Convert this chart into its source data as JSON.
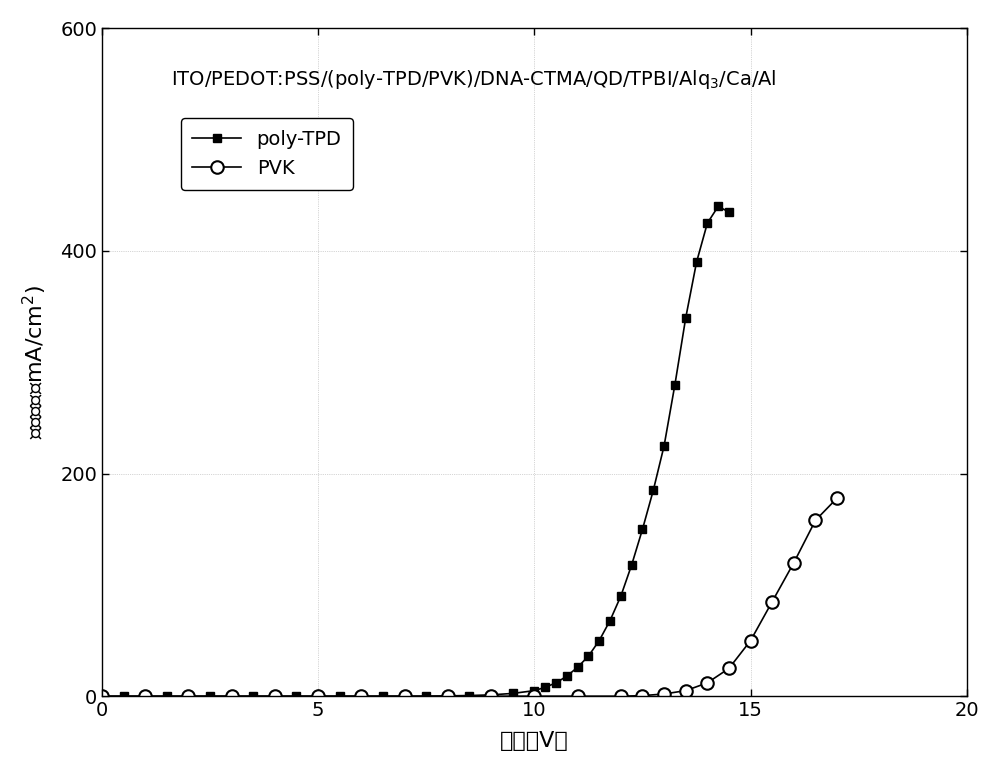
{
  "title": "ITO/PEDOT:PSS/(poly-TPD/PVK)/DNA-CTMA/QD/TPBI/Alq$_3$/Ca/Al",
  "xlabel_cn": "电压（V）",
  "ylabel_cn": "电流密度（mA/cm",
  "xlim": [
    0,
    20
  ],
  "ylim": [
    0,
    600
  ],
  "xticks": [
    0,
    5,
    10,
    15,
    20
  ],
  "yticks": [
    0,
    200,
    400,
    600
  ],
  "legend1_label": "poly-TPD",
  "legend2_label": "PVK",
  "poly_tpd_x": [
    0.0,
    0.5,
    1.0,
    1.5,
    2.0,
    2.5,
    3.0,
    3.5,
    4.0,
    4.5,
    5.0,
    5.5,
    6.0,
    6.5,
    7.0,
    7.5,
    8.0,
    8.5,
    9.0,
    9.5,
    10.0,
    10.25,
    10.5,
    10.75,
    11.0,
    11.25,
    11.5,
    11.75,
    12.0,
    12.25,
    12.5,
    12.75,
    13.0,
    13.25,
    13.5,
    13.75,
    14.0,
    14.25,
    14.5
  ],
  "poly_tpd_y": [
    0,
    0,
    0,
    0,
    0,
    0,
    0,
    0,
    0,
    0,
    0,
    0,
    0,
    0,
    0,
    0,
    0.3,
    0.6,
    1.2,
    2.5,
    5.0,
    8.0,
    12.0,
    18.0,
    26.0,
    36.0,
    50.0,
    68.0,
    90.0,
    118.0,
    150.0,
    185.0,
    225.0,
    280.0,
    340.0,
    390.0,
    425.0,
    440.0,
    435.0
  ],
  "pvk_x": [
    0,
    1.0,
    2.0,
    3.0,
    4.0,
    5.0,
    6.0,
    7.0,
    8.0,
    9.0,
    10.0,
    11.0,
    12.0,
    12.5,
    13.0,
    13.5,
    14.0,
    14.5,
    15.0,
    15.5,
    16.0,
    16.5,
    17.0
  ],
  "pvk_y": [
    0,
    0,
    0,
    0,
    0,
    0,
    0,
    0,
    0,
    0,
    0,
    0,
    0,
    0.5,
    2.0,
    5.0,
    12,
    25,
    50,
    85,
    120,
    158,
    178
  ],
  "background_color": "#ffffff",
  "line_color": "#000000",
  "title_fontsize": 14,
  "label_fontsize": 16,
  "tick_fontsize": 14,
  "legend_fontsize": 14
}
